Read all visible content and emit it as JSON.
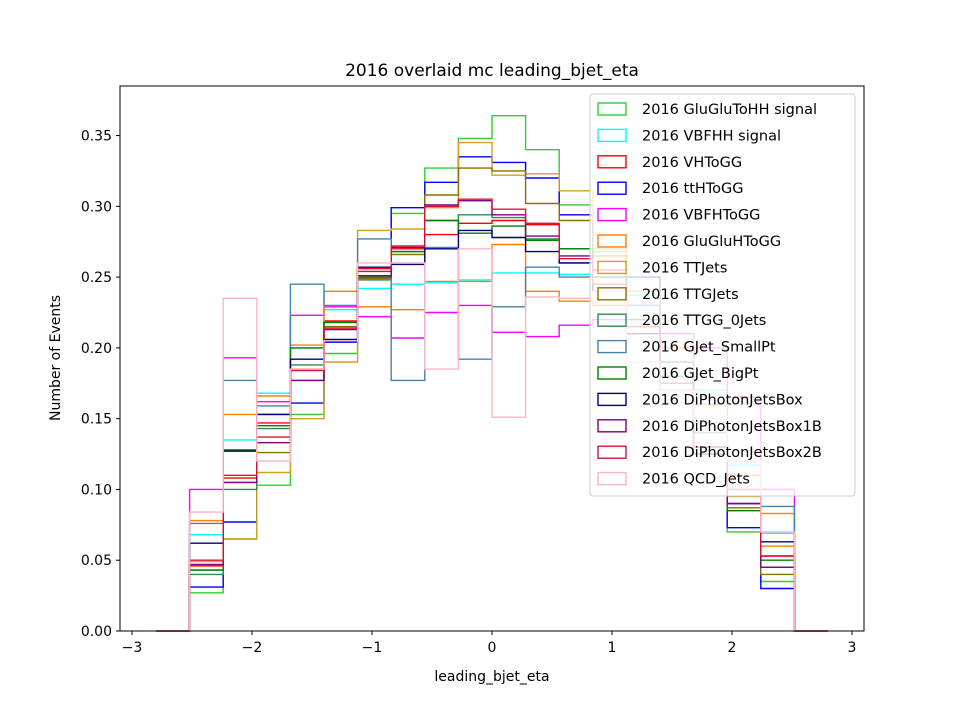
{
  "chart_data": {
    "type": "step-histogram",
    "title": "2016 overlaid mc leading_bjet_eta",
    "xlabel": "leading_bjet_eta",
    "ylabel": "Number of Events",
    "xlim": [
      -3.1,
      3.1
    ],
    "ylim": [
      0,
      0.385
    ],
    "xticks": [
      -3,
      -2,
      -1,
      0,
      1,
      2,
      3
    ],
    "xtick_labels": [
      "−3",
      "−2",
      "−1",
      "0",
      "1",
      "2",
      "3"
    ],
    "yticks": [
      0,
      0.05,
      0.1,
      0.15,
      0.2,
      0.25,
      0.3,
      0.35
    ],
    "ytick_labels": [
      "0.00",
      "0.05",
      "0.10",
      "0.15",
      "0.20",
      "0.25",
      "0.30",
      "0.35"
    ],
    "grid": false,
    "legend_position": "top-right",
    "bin_edges": [
      -2.8,
      -2.52,
      -2.24,
      -1.96,
      -1.68,
      -1.4,
      -1.12,
      -0.84,
      -0.56,
      -0.28,
      0,
      0.28,
      0.56,
      0.84,
      1.12,
      1.4,
      1.68,
      1.96,
      2.24,
      2.52,
      2.8
    ],
    "series": [
      {
        "name": "2016 GluGluToHH signal",
        "color": "#33cc33",
        "values": [
          0,
          0.027,
          0.065,
          0.103,
          0.153,
          0.196,
          0.25,
          0.295,
          0.327,
          0.348,
          0.364,
          0.34,
          0.301,
          0.268,
          0.25,
          0.2,
          0.147,
          0.07,
          0.035,
          0
        ]
      },
      {
        "name": "2016 VBFHH signal",
        "color": "#00ffff",
        "values": [
          0,
          0.068,
          0.135,
          0.168,
          0.2,
          0.227,
          0.242,
          0.245,
          0.246,
          0.248,
          0.253,
          0.253,
          0.252,
          0.25,
          0.237,
          0.21,
          0.17,
          0.117,
          0.069,
          0
        ]
      },
      {
        "name": "2016 VHToGG",
        "color": "#ff0000",
        "values": [
          0,
          0.046,
          0.108,
          0.147,
          0.185,
          0.219,
          0.254,
          0.27,
          0.28,
          0.288,
          0.29,
          0.287,
          0.26,
          0.255,
          0.24,
          0.2,
          0.16,
          0.11,
          0.053,
          0
        ]
      },
      {
        "name": "2016 ttHToGG",
        "color": "#0000ff",
        "values": [
          0,
          0.031,
          0.077,
          0.153,
          0.161,
          0.204,
          0.256,
          0.299,
          0.317,
          0.335,
          0.331,
          0.32,
          0.294,
          0.27,
          0.25,
          0.19,
          0.13,
          0.073,
          0.03,
          0
        ]
      },
      {
        "name": "2016 VBFHToGG",
        "color": "#ff00ff",
        "values": [
          0,
          0.1,
          0.193,
          0.162,
          0.223,
          0.229,
          0.222,
          0.207,
          0.225,
          0.23,
          0.211,
          0.208,
          0.216,
          0.22,
          0.21,
          0.21,
          0.2,
          0.165,
          0.1,
          0
        ]
      },
      {
        "name": "2016 GluGluHToGG",
        "color": "#ff8000",
        "values": [
          0,
          0.078,
          0.153,
          0.166,
          0.202,
          0.24,
          0.229,
          0.227,
          0.247,
          0.247,
          0.273,
          0.24,
          0.233,
          0.23,
          0.22,
          0.2,
          0.16,
          0.11,
          0.06,
          0
        ]
      },
      {
        "name": "2016 TTJets",
        "color": "#d4a020",
        "values": [
          0,
          0.049,
          0.065,
          0.112,
          0.15,
          0.19,
          0.283,
          0.284,
          0.299,
          0.345,
          0.322,
          0.323,
          0.311,
          0.27,
          0.24,
          0.19,
          0.14,
          0.095,
          0.083,
          0
        ]
      },
      {
        "name": "2016 TTGJets",
        "color": "#8b7000",
        "values": [
          0,
          0.043,
          0.105,
          0.126,
          0.177,
          0.215,
          0.249,
          0.266,
          0.308,
          0.327,
          0.325,
          0.302,
          0.29,
          0.265,
          0.23,
          0.18,
          0.13,
          0.087,
          0.04,
          0
        ]
      },
      {
        "name": "2016 TTGG_0Jets",
        "color": "#2e8b57",
        "values": [
          0,
          0.04,
          0.1,
          0.143,
          0.188,
          0.218,
          0.248,
          0.268,
          0.29,
          0.294,
          0.292,
          0.277,
          0.27,
          0.25,
          0.22,
          0.18,
          0.13,
          0.09,
          0.045,
          0
        ]
      },
      {
        "name": "2016 GJet_SmallPt",
        "color": "#4682b4",
        "values": [
          0,
          0.076,
          0.177,
          0.159,
          0.245,
          0.23,
          0.277,
          0.177,
          0.271,
          0.192,
          0.229,
          0.257,
          0.25,
          0.24,
          0.23,
          0.19,
          0.14,
          0.1,
          0.088,
          0
        ]
      },
      {
        "name": "2016 GJet_BigPt",
        "color": "#008000",
        "values": [
          0,
          0.043,
          0.128,
          0.145,
          0.2,
          0.218,
          0.25,
          0.268,
          0.29,
          0.281,
          0.286,
          0.276,
          0.27,
          0.25,
          0.22,
          0.175,
          0.125,
          0.085,
          0.05,
          0
        ]
      },
      {
        "name": "2016 DiPhotonJetsBox",
        "color": "#000080",
        "values": [
          0,
          0.062,
          0.127,
          0.153,
          0.192,
          0.206,
          0.257,
          0.259,
          0.27,
          0.283,
          0.278,
          0.268,
          0.26,
          0.24,
          0.21,
          0.17,
          0.125,
          0.09,
          0.063,
          0
        ]
      },
      {
        "name": "2016 DiPhotonJetsBox1B",
        "color": "#800080",
        "values": [
          0,
          0.047,
          0.105,
          0.133,
          0.177,
          0.213,
          0.251,
          0.271,
          0.301,
          0.304,
          0.294,
          0.279,
          0.265,
          0.245,
          0.215,
          0.175,
          0.13,
          0.09,
          0.045,
          0
        ]
      },
      {
        "name": "2016 DiPhotonJetsBox2B",
        "color": "#dc143c",
        "values": [
          0,
          0.05,
          0.11,
          0.137,
          0.184,
          0.214,
          0.256,
          0.272,
          0.3,
          0.305,
          0.298,
          0.288,
          0.263,
          0.245,
          0.215,
          0.175,
          0.13,
          0.1,
          0.053,
          0
        ]
      },
      {
        "name": "2016 QCD_Jets",
        "color": "#ffb6c1",
        "values": [
          0,
          0.084,
          0.235,
          0.12,
          0.185,
          0.205,
          0.26,
          0.26,
          0.185,
          0.27,
          0.151,
          0.236,
          0.235,
          0.24,
          0.19,
          0.17,
          0.15,
          0.12,
          0.07,
          0
        ]
      }
    ]
  }
}
